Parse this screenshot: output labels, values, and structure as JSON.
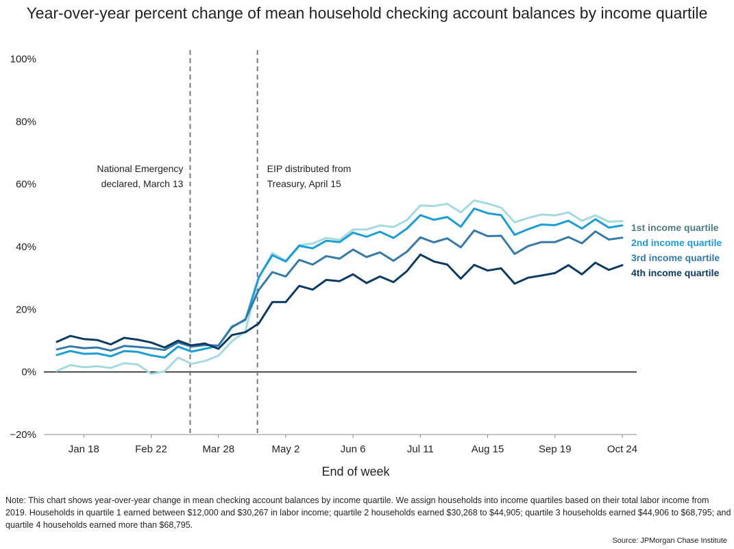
{
  "title": "Year-over-year percent change of mean household checking account balances by income quartile",
  "note": "Note: This chart shows year-over-year change in mean checking account balances by income quartile. We assign households into income quartiles based on their total labor income from 2019. Households in quartile 1 earned between $12,000 and $30,267 in labor income; quartile 2 households earned $30,268 to $44,905; quartile 3 households earned $44,906 to $68,795; and quartile 4 households earned more than $68,795.",
  "source": "Source: JPMorgan Chase Institute",
  "chart_data": {
    "type": "line",
    "xlabel": "End of week",
    "ylabel": "",
    "ylim": [
      -20,
      100
    ],
    "yticks": [
      -20,
      0,
      20,
      40,
      60,
      80,
      100
    ],
    "ytick_labels": [
      "−20%",
      "0%",
      "20%",
      "40%",
      "60%",
      "80%",
      "100%"
    ],
    "x_tick_labels": [
      "Jan 18",
      "Feb 22",
      "Mar 28",
      "May 2",
      "Jun 6",
      "Jul 11",
      "Aug 15",
      "Sep 19",
      "Oct 24"
    ],
    "x_tick_week_index": [
      2,
      7,
      12,
      17,
      22,
      27,
      32,
      37,
      42
    ],
    "n_weeks": 43,
    "grid": false,
    "legend": "right",
    "annotations": [
      {
        "week_index": 10,
        "lines": [
          "National Emergency",
          "declared, March 13"
        ],
        "align": "right"
      },
      {
        "week_index": 15,
        "lines": [
          "EIP distributed from",
          "Treasury, April 15"
        ],
        "align": "left"
      }
    ],
    "series": [
      {
        "name": "1st income quartile",
        "color": "#a3dadf",
        "legend_color": "#4b7b80",
        "values": [
          0.3,
          2.2,
          1.5,
          1.8,
          1.3,
          2.8,
          2.4,
          -0.6,
          0.2,
          4.6,
          2.6,
          3.5,
          5.2,
          9.8,
          13.0,
          30.0,
          38.0,
          35.5,
          40.5,
          41.0,
          42.8,
          42.2,
          45.5,
          45.5,
          46.8,
          46.3,
          48.5,
          53.2,
          53.0,
          53.7,
          51.0,
          54.8,
          53.8,
          52.5,
          47.8,
          49.2,
          50.3,
          50.0,
          51.0,
          48.3,
          50.0,
          48.0,
          48.2
        ]
      },
      {
        "name": "2nd income quartile",
        "color": "#199dd6",
        "legend_color": "#199dd6",
        "values": [
          5.4,
          6.7,
          5.8,
          5.9,
          5.0,
          6.7,
          6.4,
          5.3,
          4.6,
          8.1,
          6.5,
          7.4,
          8.4,
          14.5,
          16.6,
          30.3,
          37.3,
          35.3,
          40.3,
          39.5,
          41.9,
          41.5,
          44.5,
          43.2,
          44.8,
          42.8,
          45.8,
          50.1,
          48.6,
          49.5,
          46.4,
          52.2,
          50.7,
          50.1,
          43.8,
          45.6,
          47.1,
          46.9,
          48.3,
          45.8,
          48.8,
          46.1,
          46.8
        ]
      },
      {
        "name": "3rd income quartile",
        "color": "#3479a8",
        "legend_color": "#3479a8",
        "values": [
          7.2,
          8.2,
          7.6,
          7.8,
          6.8,
          8.3,
          8.0,
          7.6,
          7.0,
          9.4,
          8.1,
          8.6,
          8.4,
          14.3,
          16.8,
          26.2,
          31.9,
          30.5,
          35.8,
          34.3,
          37.0,
          36.2,
          39.1,
          36.7,
          38.2,
          35.5,
          38.4,
          43.0,
          41.4,
          42.7,
          39.8,
          45.2,
          43.4,
          43.5,
          37.7,
          40.2,
          41.5,
          41.5,
          43.1,
          41.1,
          44.9,
          42.3,
          42.9
        ]
      },
      {
        "name": "4th income quartile",
        "color": "#0b3a61",
        "legend_color": "#0b3a61",
        "values": [
          9.6,
          11.5,
          10.5,
          10.2,
          8.8,
          10.9,
          10.3,
          9.4,
          7.8,
          10.0,
          8.5,
          9.1,
          7.4,
          11.8,
          12.7,
          15.5,
          22.3,
          22.3,
          27.5,
          26.3,
          29.4,
          29.0,
          31.2,
          28.4,
          30.5,
          28.7,
          32.2,
          37.5,
          35.3,
          34.3,
          29.8,
          34.2,
          32.4,
          33.1,
          28.2,
          30.1,
          30.8,
          31.6,
          34.1,
          31.2,
          34.9,
          32.6,
          34.1
        ]
      }
    ]
  }
}
